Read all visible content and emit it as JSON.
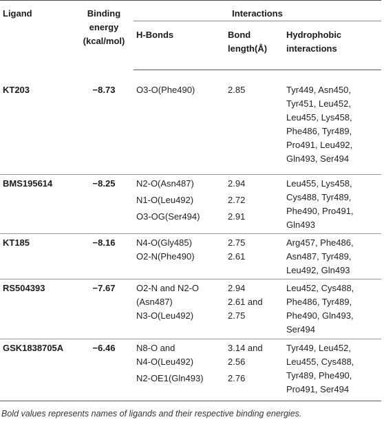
{
  "headers": {
    "ligand": "Ligand",
    "binding_energy": [
      "Binding",
      "energy",
      "(kcal/mol)"
    ],
    "interactions": "Interactions",
    "h_bonds": "H-Bonds",
    "bond_length": [
      "Bond",
      "length(Å)"
    ],
    "hydrophobic": [
      "Hydrophobic",
      "interactions"
    ]
  },
  "rows": [
    {
      "ligand": "KT203",
      "energy": "−8.73",
      "hbonds": [
        "O3-O(Phe490)"
      ],
      "lengths": [
        "2.85"
      ],
      "hydrophobic": [
        "Tyr449, Asn450,",
        "Tyr451, Leu452,",
        "Leu455, Lys458,",
        "Phe486, Tyr489,",
        "Pro491, Leu492,",
        "Gln493, Ser494"
      ]
    },
    {
      "ligand": "BMS195614",
      "energy": "−8.25",
      "hbonds": [
        "N2-O(Asn487)",
        "N1-O(Leu492)",
        "O3-OG(Ser494)"
      ],
      "lengths": [
        "2.94",
        "2.72",
        "2.91"
      ],
      "hydrophobic": [
        "Leu455, Lys458,",
        "Cys488, Tyr489,",
        "Phe490, Pro491,",
        "Gln493"
      ]
    },
    {
      "ligand": "KT185",
      "energy": "−8.16",
      "hbonds": [
        "N4-O(Gly485)",
        "O2-N(Phe490)"
      ],
      "lengths": [
        "2.75",
        "2.61"
      ],
      "hydrophobic": [
        "Arg457, Phe486,",
        "Asn487, Tyr489,",
        "Leu492, Gln493"
      ]
    },
    {
      "ligand": "RS504393",
      "energy": "−7.67",
      "hbonds": [
        "O2-N and N2-O",
        "(Asn487)",
        "N3-O(Leu492)"
      ],
      "lengths": [
        "2.94",
        "2.61 and",
        "2.75"
      ],
      "hydrophobic": [
        "Leu452, Cys488,",
        "Phe486, Tyr489,",
        "Phe490, Gln493,",
        "Ser494"
      ]
    },
    {
      "ligand": "GSK1838705A",
      "energy": "−6.46",
      "hbonds": [
        "N8-O and",
        "N4-O(Leu492)",
        "N2-OE1(Gln493)"
      ],
      "lengths": [
        "3.14 and",
        "2.56",
        "2.76"
      ],
      "hydrophobic": [
        "Tyr449, Leu452,",
        "Leu455, Cys488,",
        "Tyr489, Phe490,",
        "Pro491, Ser494"
      ]
    }
  ],
  "caption": "Bold values represents names of ligands and their respective binding energies."
}
